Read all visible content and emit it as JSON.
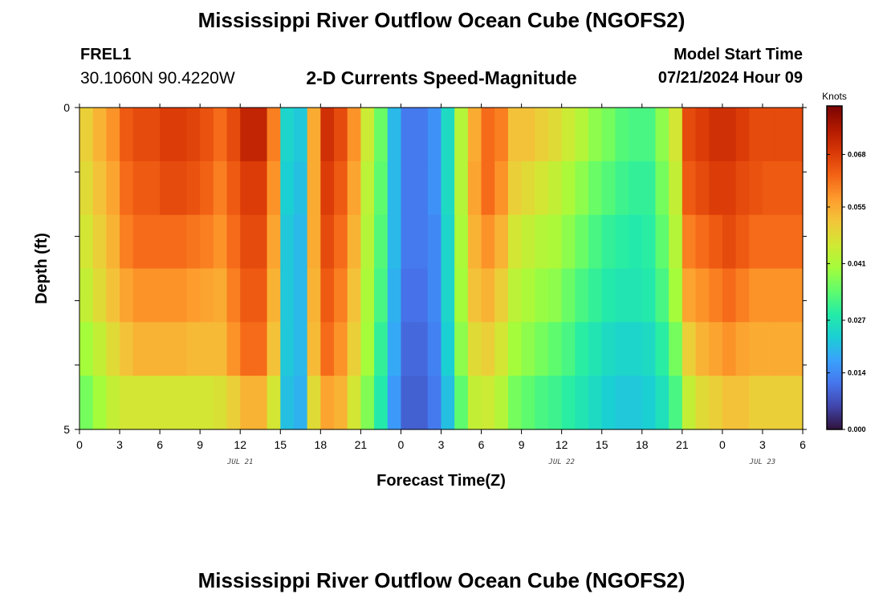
{
  "header": {
    "title": "Mississippi River Outflow Ocean Cube (NGOFS2)",
    "station_id": "FREL1",
    "station_coords": "30.1060N  90.4220W",
    "plot_subtitle": "2-D Currents Speed-Magnitude",
    "model_label": "Model Start Time",
    "model_time": "07/21/2024 Hour 09"
  },
  "footer": {
    "title": "Mississippi River Outflow Ocean Cube (NGOFS2)"
  },
  "chart_data": {
    "type": "heatmap",
    "xlabel": "Forecast Time(Z)",
    "ylabel": "Depth (ft)",
    "x_tick_labels": [
      "0",
      "3",
      "6",
      "9",
      "12",
      "15",
      "18",
      "21",
      "0",
      "3",
      "6",
      "9",
      "12",
      "15",
      "18",
      "21",
      "0",
      "3",
      "6"
    ],
    "x_hours_from_start": [
      0,
      3,
      6,
      9,
      12,
      15,
      18,
      21,
      24,
      27,
      30,
      33,
      36,
      39,
      42,
      45,
      48,
      51,
      54
    ],
    "date_labels": [
      {
        "text": "JUL 21",
        "hour": 12
      },
      {
        "text": "JUL 22",
        "hour": 36
      },
      {
        "text": "JUL 23",
        "hour": 51
      }
    ],
    "y_tick_labels": [
      "0",
      "5"
    ],
    "ylim": [
      0,
      5
    ],
    "xlim_hours": [
      0,
      54
    ],
    "colorbar": {
      "unit": "Knots",
      "min": 0.0,
      "max": 0.08,
      "tick_values": [
        0.0,
        0.014,
        0.027,
        0.041,
        0.055,
        0.068
      ],
      "tick_labels": [
        "0.000",
        "0.014",
        "0.027",
        "0.041",
        "0.055",
        "0.068"
      ],
      "colormap": [
        "#30123b",
        "#4145ab",
        "#4675ed",
        "#39a2fc",
        "#1bcfd4",
        "#24eca6",
        "#61fc6c",
        "#a4fc3b",
        "#d1e834",
        "#f3c63a",
        "#fe9b2d",
        "#f36315",
        "#d93806",
        "#b11901",
        "#7a0402"
      ]
    },
    "depth_layers": [
      {
        "row": "top",
        "speeds": [
          0.05,
          0.054,
          0.058,
          0.064,
          0.066,
          0.066,
          0.068,
          0.068,
          0.067,
          0.065,
          0.062,
          0.066,
          0.072,
          0.072,
          0.06,
          0.024,
          0.022,
          0.055,
          0.07,
          0.066,
          0.058,
          0.045,
          0.035,
          0.02,
          0.012,
          0.012,
          0.015,
          0.025,
          0.042,
          0.055,
          0.062,
          0.06,
          0.052,
          0.052,
          0.05,
          0.048,
          0.045,
          0.042,
          0.038,
          0.036,
          0.033,
          0.032,
          0.032,
          0.038,
          0.046,
          0.066,
          0.068,
          0.07,
          0.07,
          0.068,
          0.066,
          0.066,
          0.066,
          0.066
        ]
      },
      {
        "row": "upper",
        "speeds": [
          0.048,
          0.052,
          0.056,
          0.062,
          0.064,
          0.064,
          0.066,
          0.066,
          0.065,
          0.063,
          0.06,
          0.064,
          0.068,
          0.068,
          0.058,
          0.023,
          0.021,
          0.055,
          0.068,
          0.064,
          0.056,
          0.043,
          0.034,
          0.02,
          0.012,
          0.012,
          0.015,
          0.025,
          0.042,
          0.056,
          0.062,
          0.058,
          0.05,
          0.048,
          0.046,
          0.044,
          0.041,
          0.038,
          0.035,
          0.033,
          0.031,
          0.03,
          0.03,
          0.036,
          0.044,
          0.064,
          0.066,
          0.068,
          0.068,
          0.066,
          0.065,
          0.064,
          0.064,
          0.064
        ]
      },
      {
        "row": "middle",
        "speeds": [
          0.046,
          0.05,
          0.054,
          0.06,
          0.062,
          0.062,
          0.062,
          0.062,
          0.061,
          0.06,
          0.058,
          0.062,
          0.066,
          0.066,
          0.056,
          0.022,
          0.02,
          0.055,
          0.066,
          0.062,
          0.054,
          0.042,
          0.033,
          0.02,
          0.012,
          0.012,
          0.014,
          0.024,
          0.041,
          0.054,
          0.058,
          0.054,
          0.046,
          0.044,
          0.042,
          0.041,
          0.038,
          0.035,
          0.032,
          0.03,
          0.029,
          0.028,
          0.029,
          0.034,
          0.042,
          0.06,
          0.062,
          0.064,
          0.066,
          0.064,
          0.062,
          0.062,
          0.062,
          0.062
        ]
      },
      {
        "row": "lower",
        "speeds": [
          0.044,
          0.048,
          0.052,
          0.056,
          0.058,
          0.058,
          0.058,
          0.058,
          0.057,
          0.056,
          0.055,
          0.06,
          0.064,
          0.064,
          0.054,
          0.022,
          0.02,
          0.054,
          0.064,
          0.06,
          0.052,
          0.041,
          0.032,
          0.019,
          0.011,
          0.011,
          0.014,
          0.024,
          0.04,
          0.052,
          0.054,
          0.05,
          0.043,
          0.041,
          0.039,
          0.038,
          0.035,
          0.032,
          0.03,
          0.028,
          0.027,
          0.027,
          0.028,
          0.032,
          0.04,
          0.056,
          0.058,
          0.06,
          0.062,
          0.06,
          0.058,
          0.058,
          0.058,
          0.058
        ]
      },
      {
        "row": "deep",
        "speeds": [
          0.04,
          0.044,
          0.048,
          0.052,
          0.054,
          0.054,
          0.054,
          0.054,
          0.053,
          0.053,
          0.053,
          0.058,
          0.062,
          0.062,
          0.052,
          0.022,
          0.02,
          0.053,
          0.062,
          0.058,
          0.05,
          0.04,
          0.03,
          0.018,
          0.01,
          0.01,
          0.013,
          0.023,
          0.038,
          0.048,
          0.05,
          0.046,
          0.04,
          0.038,
          0.036,
          0.034,
          0.032,
          0.029,
          0.027,
          0.025,
          0.024,
          0.024,
          0.025,
          0.029,
          0.036,
          0.05,
          0.054,
          0.056,
          0.058,
          0.056,
          0.055,
          0.055,
          0.055,
          0.055
        ]
      },
      {
        "row": "bottom",
        "speeds": [
          0.036,
          0.04,
          0.044,
          0.046,
          0.046,
          0.046,
          0.046,
          0.046,
          0.046,
          0.046,
          0.047,
          0.05,
          0.054,
          0.054,
          0.046,
          0.021,
          0.019,
          0.048,
          0.056,
          0.054,
          0.046,
          0.037,
          0.028,
          0.016,
          0.009,
          0.009,
          0.012,
          0.021,
          0.034,
          0.044,
          0.045,
          0.042,
          0.036,
          0.034,
          0.032,
          0.031,
          0.029,
          0.027,
          0.025,
          0.023,
          0.022,
          0.022,
          0.023,
          0.026,
          0.032,
          0.044,
          0.048,
          0.05,
          0.052,
          0.052,
          0.05,
          0.05,
          0.05,
          0.05
        ]
      }
    ]
  }
}
